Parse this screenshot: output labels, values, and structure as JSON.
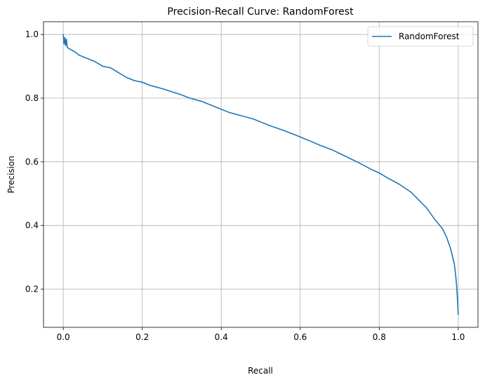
{
  "chart_data": {
    "type": "line",
    "title": "Precision-Recall Curve: RandomForest",
    "xlabel": "Recall",
    "ylabel": "Precision",
    "xlim": [
      -0.05,
      1.05
    ],
    "ylim": [
      0.08,
      1.04
    ],
    "xticks": [
      0.0,
      0.2,
      0.4,
      0.6,
      0.8,
      1.0
    ],
    "xtick_labels": [
      "0.0",
      "0.2",
      "0.4",
      "0.6",
      "0.8",
      "1.0"
    ],
    "yticks": [
      0.2,
      0.4,
      0.6,
      0.8,
      1.0
    ],
    "ytick_labels": [
      "0.2",
      "0.4",
      "0.6",
      "0.8",
      "1.0"
    ],
    "grid": true,
    "legend_position": "top-right",
    "series": [
      {
        "name": "RandomForest",
        "color": "#1f77b4",
        "x": [
          0.0,
          0.002,
          0.004,
          0.006,
          0.008,
          0.01,
          0.015,
          0.02,
          0.03,
          0.04,
          0.05,
          0.06,
          0.08,
          0.1,
          0.12,
          0.14,
          0.16,
          0.18,
          0.2,
          0.22,
          0.25,
          0.28,
          0.3,
          0.32,
          0.35,
          0.38,
          0.4,
          0.42,
          0.45,
          0.48,
          0.5,
          0.52,
          0.55,
          0.58,
          0.6,
          0.62,
          0.65,
          0.68,
          0.7,
          0.72,
          0.75,
          0.78,
          0.8,
          0.82,
          0.85,
          0.88,
          0.9,
          0.92,
          0.94,
          0.96,
          0.97,
          0.98,
          0.985,
          0.99,
          0.993,
          0.996,
          0.998,
          1.0
        ],
        "y": [
          1.0,
          0.97,
          0.99,
          0.965,
          0.985,
          0.96,
          0.955,
          0.952,
          0.945,
          0.935,
          0.93,
          0.925,
          0.915,
          0.9,
          0.895,
          0.88,
          0.865,
          0.855,
          0.85,
          0.84,
          0.83,
          0.818,
          0.81,
          0.8,
          0.79,
          0.775,
          0.765,
          0.755,
          0.745,
          0.735,
          0.725,
          0.715,
          0.702,
          0.688,
          0.678,
          0.668,
          0.652,
          0.638,
          0.626,
          0.614,
          0.596,
          0.576,
          0.565,
          0.55,
          0.53,
          0.505,
          0.48,
          0.455,
          0.42,
          0.39,
          0.365,
          0.33,
          0.305,
          0.28,
          0.25,
          0.21,
          0.17,
          0.12
        ]
      }
    ]
  }
}
